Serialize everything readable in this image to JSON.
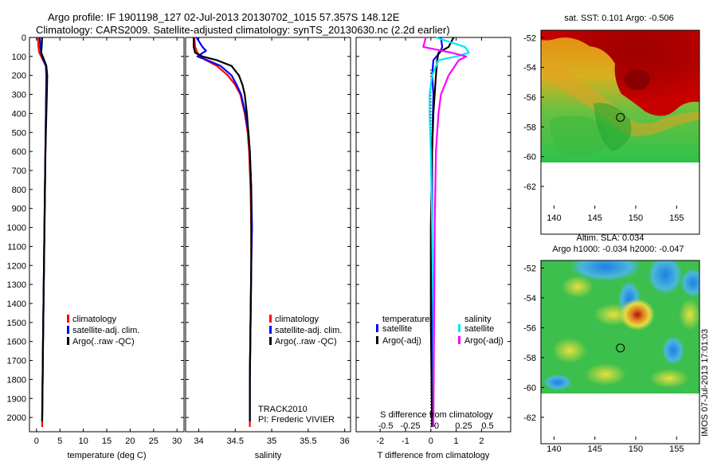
{
  "header": {
    "line1": "Argo profile: IF 1901198_127 02-Jul-2013 20130702_1015 57.357S 148.12E",
    "line2": "Climatology: CARS2009. Satellite-adjusted climatology: synTS_20130630.nc (2.2d earlier)"
  },
  "colors": {
    "climatology": "#ff0000",
    "satellite": "#0000ff",
    "argo": "#000000",
    "sal_satellite": "#00e5ff",
    "sal_argo": "#ff00ff"
  },
  "chart_data": [
    {
      "type": "line",
      "xlabel": "temperature (deg C)",
      "ylabel": "",
      "xticks": [
        0,
        5,
        10,
        15,
        20,
        25,
        30
      ],
      "yticks": [
        0,
        100,
        200,
        300,
        400,
        500,
        600,
        700,
        800,
        900,
        1000,
        1100,
        1200,
        1300,
        1400,
        1500,
        1600,
        1700,
        1800,
        1900,
        2000
      ],
      "xlim": [
        -1.5,
        31.5
      ],
      "ylim": [
        2075,
        0
      ],
      "legend": [
        "climatology",
        "satellite-adj. clim.",
        "Argo(..raw -QC)"
      ],
      "legend_position": "lower-middle",
      "series": [
        {
          "name": "climatology",
          "color": "#ff0000",
          "x": [
            0.3,
            0.4,
            0.6,
            1.2,
            2.0,
            2.1,
            2.05,
            2.0,
            1.9,
            1.8,
            1.7,
            1.6,
            1.5,
            1.4,
            1.3,
            1.2
          ],
          "y": [
            0,
            50,
            80,
            110,
            150,
            200,
            300,
            400,
            600,
            800,
            1000,
            1200,
            1400,
            1600,
            1800,
            2050
          ]
        },
        {
          "name": "satellite-adj. clim.",
          "color": "#0000ff",
          "x": [
            0.7,
            0.8,
            1.0,
            1.3,
            2.0,
            2.1,
            2.05,
            2.0,
            1.9,
            1.8,
            1.7,
            1.6,
            1.5,
            1.4,
            1.3,
            1.2
          ],
          "y": [
            0,
            50,
            80,
            110,
            150,
            200,
            300,
            400,
            600,
            800,
            1000,
            1200,
            1400,
            1600,
            1800,
            2020
          ]
        },
        {
          "name": "Argo(..raw -QC)",
          "color": "#000000",
          "x": [
            1.2,
            1.1,
            1.0,
            1.5,
            2.1,
            2.3,
            2.2,
            2.1,
            1.9,
            1.8,
            1.7,
            1.6,
            1.5,
            1.4,
            1.3,
            1.2
          ],
          "y": [
            0,
            50,
            80,
            110,
            150,
            200,
            300,
            400,
            600,
            800,
            1000,
            1200,
            1400,
            1600,
            1800,
            2020
          ]
        }
      ]
    },
    {
      "type": "line",
      "xlabel": "salinity",
      "ylabel": "",
      "xticks": [
        34,
        34.5,
        35,
        35.5,
        36
      ],
      "xlim": [
        33.82,
        36.08
      ],
      "ylim": [
        2075,
        0
      ],
      "legend": [
        "climatology",
        "satellite-adj. clim.",
        "Argo(..raw -QC)"
      ],
      "legend_position": "lower-right",
      "annotations": [
        "TRACK2010",
        "PI: Frederic VIVIER"
      ],
      "series": [
        {
          "name": "climatology",
          "color": "#ff0000",
          "x": [
            33.94,
            33.95,
            33.98,
            34.02,
            34.1,
            34.25,
            34.4,
            34.5,
            34.57,
            34.63,
            34.67,
            34.69,
            34.71,
            34.72,
            34.72,
            34.71,
            34.7,
            34.7
          ],
          "y": [
            0,
            50,
            80,
            100,
            120,
            150,
            200,
            250,
            300,
            400,
            500,
            600,
            800,
            1000,
            1200,
            1500,
            1800,
            2050
          ]
        },
        {
          "name": "satellite-adj. clim.",
          "color": "#0000ff",
          "x": [
            33.97,
            34.05,
            34.1,
            33.98,
            34.12,
            34.3,
            34.45,
            34.52,
            34.58,
            34.64,
            34.68,
            34.7,
            34.72,
            34.73,
            34.72,
            34.71,
            34.7,
            34.7
          ],
          "y": [
            0,
            50,
            70,
            100,
            120,
            150,
            200,
            250,
            300,
            400,
            500,
            600,
            800,
            1000,
            1200,
            1500,
            1800,
            2020
          ]
        },
        {
          "name": "Argo(..raw -QC)",
          "color": "#000000",
          "x": [
            33.93,
            33.93,
            33.95,
            34.05,
            34.25,
            34.45,
            34.55,
            34.6,
            34.63,
            34.66,
            34.68,
            34.7,
            34.72,
            34.72,
            34.72,
            34.71,
            34.7,
            34.7
          ],
          "y": [
            0,
            50,
            80,
            100,
            120,
            150,
            200,
            250,
            300,
            400,
            500,
            600,
            800,
            1000,
            1200,
            1500,
            1800,
            2020
          ]
        }
      ]
    },
    {
      "type": "line",
      "xlabel": "T difference from climatology",
      "ylabel": "",
      "top_axis_label": "S difference from climatology",
      "xticks": [
        -2,
        -1,
        0,
        1,
        2
      ],
      "top_xticks": [
        "-0.5",
        "-0.25",
        "0",
        "0.25",
        "0.5"
      ],
      "xlim": [
        -2.95,
        3.15
      ],
      "ylim": [
        2075,
        0
      ],
      "legend_groups": [
        {
          "title": "temperature",
          "entries": [
            "satellite",
            "Argo(-adj)"
          ]
        },
        {
          "title": "salinity",
          "entries": [
            "satellite",
            "Argo(-adj)"
          ]
        }
      ],
      "series": [
        {
          "name": "temperature satellite",
          "color": "#0000ff",
          "x": [
            0.4,
            0.45,
            0.35,
            0.1,
            0.05,
            0.1,
            0.08,
            0.05,
            0.05,
            0.05,
            0.05
          ],
          "y": [
            0,
            50,
            80,
            120,
            200,
            300,
            400,
            600,
            1000,
            1500,
            2050
          ]
        },
        {
          "name": "temperature Argo(-adj)",
          "color": "#000000",
          "x": [
            0.9,
            0.7,
            0.3,
            0.25,
            0.2,
            0.15,
            0.1,
            0.05,
            0.0,
            0.0,
            0.05
          ],
          "y": [
            0,
            50,
            80,
            120,
            200,
            300,
            400,
            600,
            1000,
            1500,
            2050
          ]
        },
        {
          "name": "salinity satellite",
          "color": "#00e5ff",
          "x": [
            0.2,
            1.35,
            1.5,
            1.0,
            0.3,
            0.05,
            -0.05,
            -0.05,
            0.0,
            0.05,
            0.1,
            0.1
          ],
          "y": [
            0,
            50,
            80,
            100,
            120,
            200,
            300,
            400,
            600,
            1000,
            1500,
            2050
          ]
        },
        {
          "name": "salinity Argo(-adj)",
          "color": "#ff00ff",
          "x": [
            -0.2,
            -0.3,
            0.8,
            1.4,
            1.1,
            0.7,
            0.4,
            0.3,
            0.2,
            0.15,
            0.1
          ],
          "y": [
            0,
            50,
            80,
            100,
            120,
            200,
            300,
            400,
            600,
            1000,
            2050
          ]
        }
      ]
    },
    {
      "type": "heatmap",
      "title": "sat. SST: 0.101  Argo: -0.506",
      "xticks": [
        140,
        145,
        150,
        155
      ],
      "yticks": [
        -52,
        -54,
        -56,
        -58,
        -60,
        -62
      ],
      "xlim": [
        138.4,
        157.8
      ],
      "ylim": [
        -63.5,
        -51.5
      ],
      "marker": {
        "lon": 148.12,
        "lat": -57.357
      }
    },
    {
      "type": "heatmap",
      "title": "Altim. SLA: 0.034",
      "subtitle": "Argo h1000: -0.034 h2000: -0.047",
      "xticks": [
        140,
        145,
        150,
        155
      ],
      "yticks": [
        -52,
        -54,
        -56,
        -58,
        -60,
        -62
      ],
      "xlim": [
        138.4,
        157.8
      ],
      "ylim": [
        -63.5,
        -51.5
      ],
      "marker": {
        "lon": 148.12,
        "lat": -57.357
      }
    }
  ],
  "footer": {
    "stamp": "IMOS 07-Jul-2013 17:01:03"
  }
}
